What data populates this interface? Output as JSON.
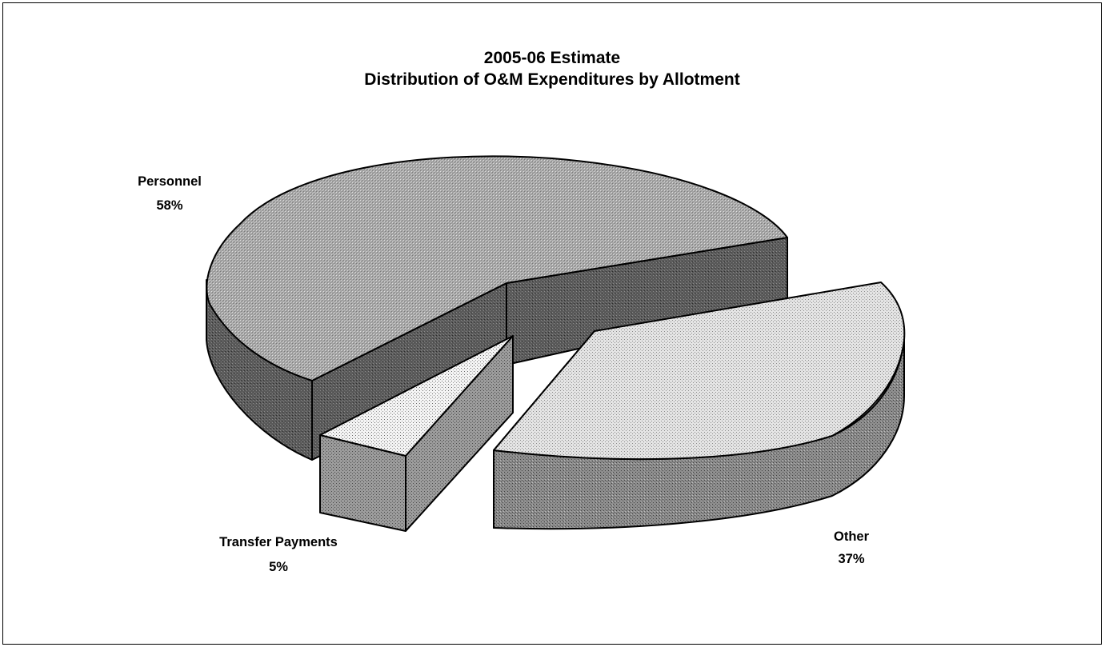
{
  "chart_data": {
    "type": "pie",
    "style": "3d-exploded",
    "title": "2005-06 Estimate",
    "subtitle": "Distribution of O&M Expenditures by Allotment",
    "slices": [
      {
        "key": "personnel",
        "label": "Personnel",
        "percent_label": "58%",
        "value": 58
      },
      {
        "key": "other",
        "label": "Other",
        "percent_label": "37%",
        "value": 37
      },
      {
        "key": "transfer",
        "label": "Transfer Payments",
        "percent_label": "5%",
        "value": 5
      }
    ],
    "legend": "none"
  }
}
